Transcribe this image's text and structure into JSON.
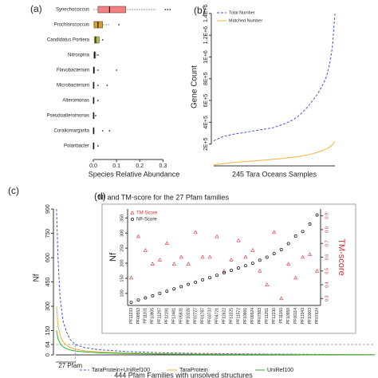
{
  "chart_data": [
    {
      "type": "box",
      "label": "(a)",
      "xlabel": "Species Relative Abundance",
      "categories": [
        "Synechococcus",
        "Prochlorococcus",
        "Candidatus Portiera",
        "Nitrospina",
        "Flavobacterium",
        "Microbacterium",
        "Alteromonas",
        "Pseudoalteromonas",
        "Coraliomargarita",
        "Polaribacter"
      ],
      "colors": [
        "#f28080",
        "#d9a020",
        "#b5bf30",
        "#7fa838",
        "#4f9a55",
        "#4aa090",
        "#40a0b0",
        "#4a90c8",
        "#7080d0",
        "#a080d0"
      ],
      "low": [
        0.0,
        0.0,
        0.002,
        0.001,
        0.0,
        0.0,
        0.0,
        0.0,
        0.0,
        0.0
      ],
      "q1": [
        0.02,
        0.003,
        0.005,
        0.003,
        0.0,
        0.0,
        0.0,
        0.0,
        0.0,
        0.0
      ],
      "median": [
        0.07,
        0.02,
        0.01,
        0.005,
        0.002,
        0.001,
        0.001,
        0.001,
        0.001,
        0.001
      ],
      "q3": [
        0.14,
        0.04,
        0.025,
        0.01,
        0.005,
        0.003,
        0.002,
        0.002,
        0.003,
        0.002
      ],
      "high": [
        0.27,
        0.07,
        0.03,
        0.015,
        0.01,
        0.006,
        0.004,
        0.004,
        0.006,
        0.004
      ],
      "outliers": [
        [
          0.31,
          0.32,
          0.33
        ],
        [
          0.11
        ],
        [
          0.04
        ],
        [
          0.02
        ],
        [
          0.02,
          0.1
        ],
        [
          0.02,
          0.06
        ],
        [
          0.02
        ],
        [
          0.01
        ],
        [
          0.04,
          0.07
        ],
        [
          0.02
        ]
      ],
      "xlim": [
        0,
        0.35
      ],
      "xticks": [
        {
          "value": 0,
          "label": "0.0"
        },
        0.1,
        0.2,
        0.3
      ]
    },
    {
      "type": "line",
      "label": "(b)",
      "xlabel": "245 Tara Oceans Samples",
      "ylabel": "Gene Count",
      "x": [
        1,
        20,
        40,
        60,
        80,
        100,
        120,
        140,
        160,
        175,
        190,
        200,
        210,
        220,
        228,
        235,
        240,
        245
      ],
      "series": [
        {
          "name": "Total Number",
          "color": "#4455dd",
          "dash": true,
          "values": [
            230000,
            270000,
            290000,
            305000,
            320000,
            335000,
            350000,
            380000,
            420000,
            470000,
            540000,
            600000,
            660000,
            740000,
            820000,
            950000,
            1100000,
            1400000
          ]
        },
        {
          "name": "Matched Number",
          "color": "#f0b040",
          "dash": false,
          "values": [
            10000,
            20000,
            30000,
            38000,
            45000,
            52000,
            60000,
            68000,
            78000,
            88000,
            100000,
            112000,
            125000,
            140000,
            155000,
            175000,
            195000,
            225000
          ]
        }
      ],
      "xlim": [
        1,
        245
      ],
      "ylim": [
        0,
        1450000
      ],
      "yticks": [
        {
          "value": 200000,
          "label": "2E+5"
        },
        {
          "value": 400000,
          "label": "4E+5"
        },
        {
          "value": 600000,
          "label": "6E+5"
        },
        {
          "value": 800000,
          "label": "8E+5"
        },
        {
          "value": 1000000,
          "label": "1E+6"
        },
        {
          "value": 1200000,
          "label": "1.2E+6"
        },
        {
          "value": 1400000,
          "label": "1.4E+6"
        }
      ],
      "legend": "upper left"
    },
    {
      "type": "line",
      "label": "(c)",
      "xlabel": "444 Pfam Families with unsolved structures",
      "ylabel": "Nf",
      "annotation": "27 Pfam",
      "highlight_x": 27,
      "x": [
        1,
        3,
        6,
        10,
        15,
        20,
        27,
        40,
        60,
        100,
        150,
        200,
        300,
        400,
        444
      ],
      "series": [
        {
          "name": "TaraProtein+UniRef100",
          "color": "#4455dd",
          "dash": true,
          "values": [
            900,
            600,
            350,
            210,
            140,
            95,
            64,
            45,
            32,
            20,
            13,
            9,
            5,
            2,
            1
          ]
        },
        {
          "name": "TaraProtein",
          "color": "#f0b040",
          "dash": false,
          "values": [
            300,
            180,
            120,
            80,
            60,
            45,
            35,
            25,
            18,
            11,
            7,
            5,
            3,
            1,
            1
          ]
        },
        {
          "name": "UniRef100",
          "color": "#30b030",
          "dash": false,
          "values": [
            150,
            100,
            70,
            50,
            38,
            30,
            24,
            18,
            13,
            8,
            5,
            3,
            2,
            1,
            0
          ]
        }
      ],
      "xlim": [
        0,
        444
      ],
      "ylim": [
        0,
        950
      ],
      "yticks": [
        0,
        64,
        150,
        300,
        450,
        600,
        750,
        900
      ],
      "legend": "bottom"
    },
    {
      "type": "scatter",
      "label": "(d)",
      "title": "Nf and TM-score for the 27 Pfam families",
      "ylabel": "Nf",
      "y2label": "TM-score",
      "categories": [
        "PF11233",
        "PF08553",
        "PF11101",
        "PF10905",
        "PF11297",
        "PF12191",
        "PF13481",
        "PF05831",
        "PF10226",
        "PF07727",
        "PF01787",
        "PF03733",
        "PF04721",
        "PF12622",
        "PF13225",
        "PF11572",
        "PF10681",
        "PF09524",
        "PF07583",
        "PF11251",
        "PF12230",
        "PF11160",
        "PF10950",
        "PF06114",
        "PF13343",
        "PF10003",
        "PF07624"
      ],
      "series": [
        {
          "name": "TM-Score",
          "color": "#e03030",
          "marker": "triangle",
          "axis": "y2",
          "values": [
            0.45,
            0.75,
            0.65,
            0.55,
            0.58,
            0.7,
            0.55,
            0.6,
            0.55,
            0.78,
            0.6,
            0.6,
            0.75,
            0.5,
            0.58,
            0.72,
            0.6,
            0.65,
            0.5,
            0.4,
            0.78,
            0.3,
            0.55,
            0.45,
            0.6,
            0.62,
            0.5
          ]
        },
        {
          "name": "NF-Score",
          "color": "#222222",
          "marker": "circle",
          "axis": "y",
          "values": [
            70,
            78,
            85,
            92,
            100,
            107,
            115,
            122,
            130,
            137,
            145,
            152,
            160,
            168,
            176,
            184,
            192,
            200,
            210,
            220,
            232,
            245,
            265,
            290,
            305,
            330,
            360
          ]
        }
      ],
      "ylim": [
        60,
        380
      ],
      "yticks": [
        100,
        150,
        200,
        250,
        300,
        350
      ],
      "y2lim": [
        0.25,
        0.95
      ],
      "y2ticks": [
        0.3,
        0.4,
        0.5,
        0.6,
        0.7,
        0.8,
        0.9
      ],
      "legend": "upper left"
    }
  ]
}
